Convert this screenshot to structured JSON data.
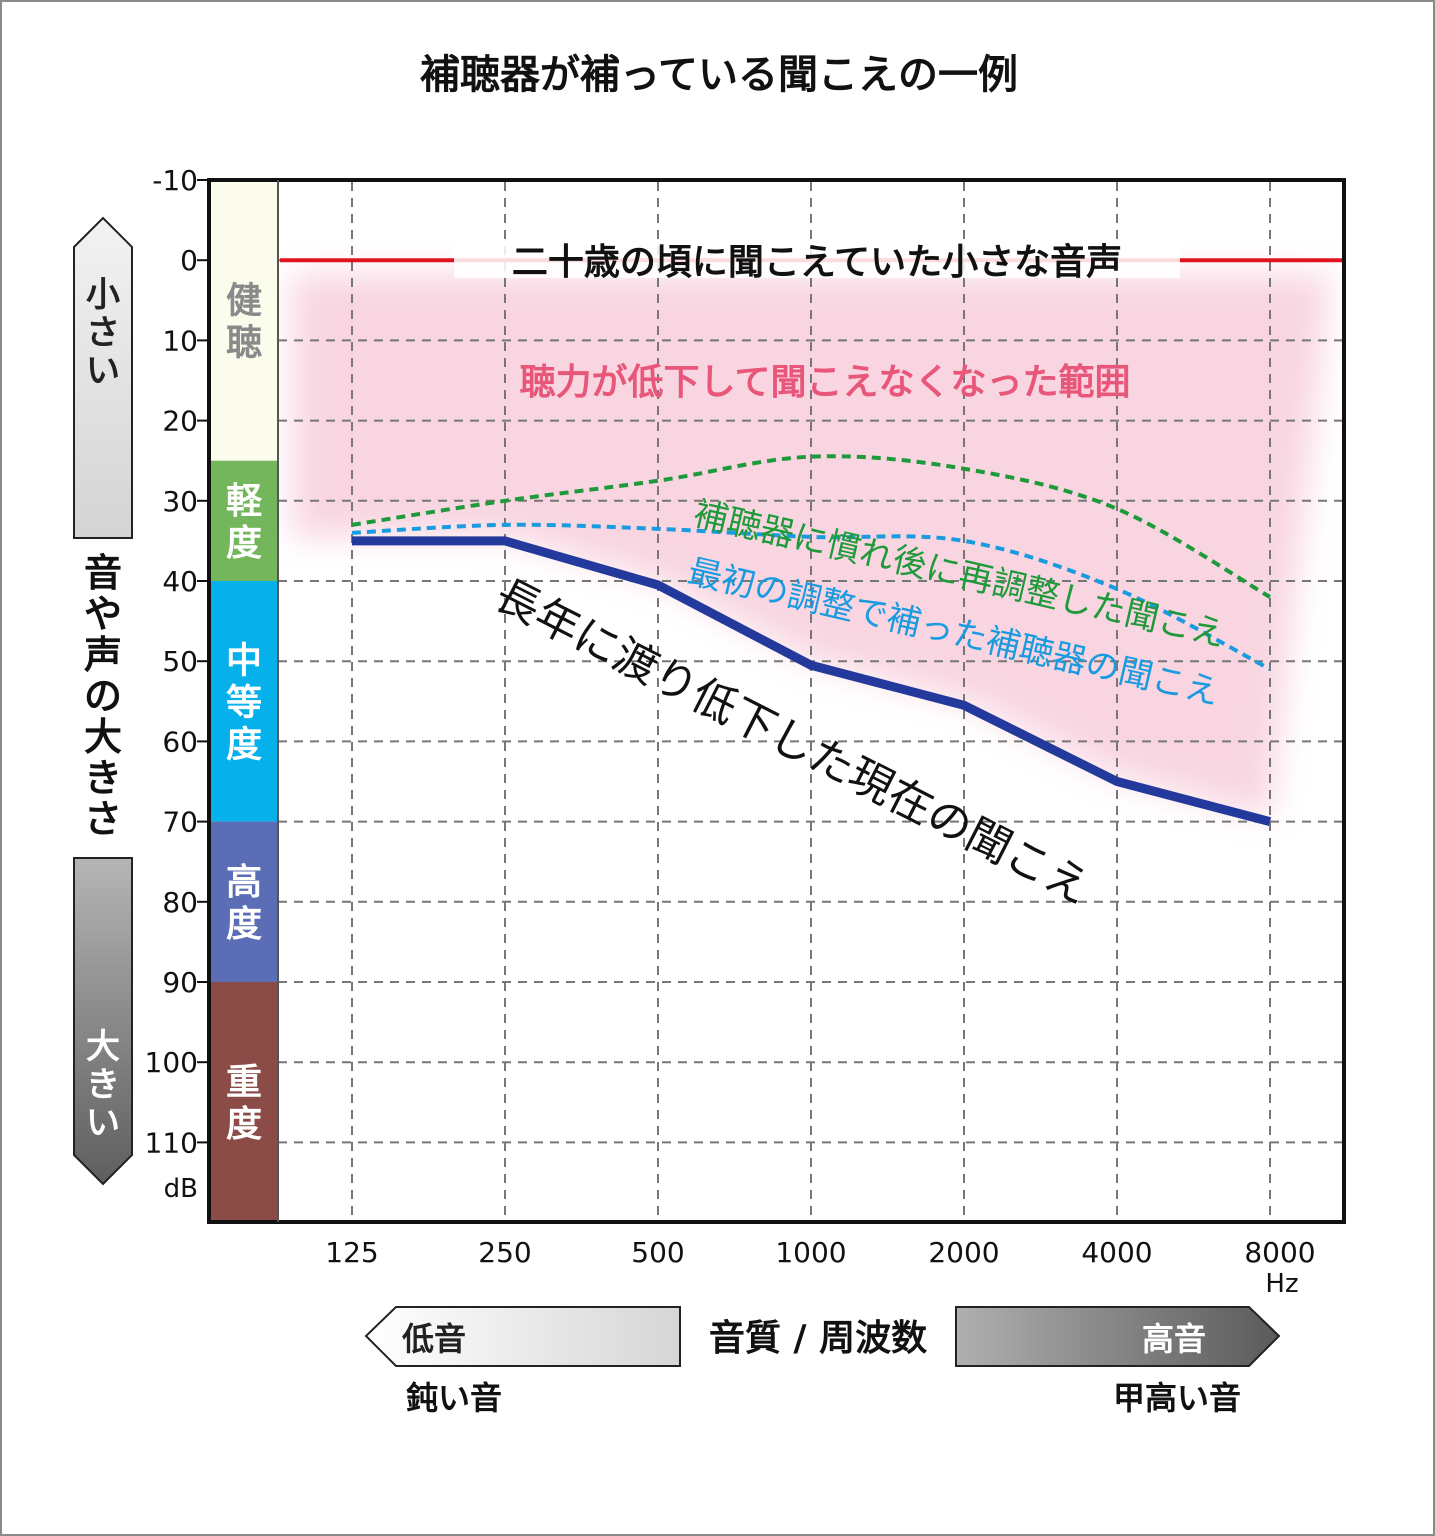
{
  "title": "補聴器が補っている聞こえの一例",
  "y_axis": {
    "label": "音や声の大きさ",
    "top_arrow_label": "小さい",
    "bottom_arrow_label": "大きい",
    "unit": "dB",
    "ticks": [
      "-10",
      "0",
      "10",
      "20",
      "30",
      "40",
      "50",
      "60",
      "70",
      "80",
      "90",
      "100",
      "110"
    ]
  },
  "x_axis": {
    "label": "音質 / 周波数",
    "unit": "Hz",
    "ticks": [
      "125",
      "250",
      "500",
      "1000",
      "2000",
      "4000",
      "8000"
    ],
    "left_arrow_label": "低音",
    "right_arrow_label": "高音",
    "left_caption": "鈍い音",
    "right_caption": "甲高い音"
  },
  "bands": [
    {
      "label": "健聴",
      "from": -10,
      "to": 25,
      "color": "#fbfcec",
      "text_color": "#8a8a8a"
    },
    {
      "label": "軽度",
      "from": 25,
      "to": 40,
      "color": "#74b65b",
      "text_color": "#ffffff"
    },
    {
      "label": "中等度",
      "from": 40,
      "to": 70,
      "color": "#06b0ea",
      "text_color": "#ffffff"
    },
    {
      "label": "高度",
      "from": 70,
      "to": 90,
      "color": "#5a6db5",
      "text_color": "#ffffff"
    },
    {
      "label": "重度",
      "from": 90,
      "to": 120,
      "color": "#8b4c48",
      "text_color": "#ffffff"
    }
  ],
  "annotations": {
    "reference_line": "二十歳の頃に聞こえていた小さな音声",
    "lost_range": "聴力が低下して聞こえなくなった範囲",
    "readjusted": "補聴器に慣れ後に再調整した聞こえ",
    "initial": "最初の調整で補った補聴器の聞こえ",
    "current": "長年に渡り低下した現在の聞こえ"
  },
  "colors": {
    "reference_line": "#e0121e",
    "lost_range": "#e8567a",
    "readjusted": "#1f9a3a",
    "initial": "#1a9be0",
    "current": "#23399b",
    "shade": "#f6c8d8"
  },
  "chart_data": {
    "type": "line",
    "x": [
      "125",
      "250",
      "500",
      "1000",
      "2000",
      "4000",
      "8000"
    ],
    "xlabel": "音質 / 周波数",
    "ylabel": "音や声の大きさ",
    "ylim": [
      -10,
      120
    ],
    "y_inverted": true,
    "x_scale": "log",
    "grid": true,
    "series": [
      {
        "name": "二十歳の頃に聞こえていた小さな音声",
        "style": "solid",
        "values": [
          0,
          0,
          0,
          0,
          0,
          0,
          0
        ]
      },
      {
        "name": "補聴器に慣れ後に再調整した聞こえ",
        "style": "dotted",
        "values": [
          33,
          30,
          27.5,
          24.5,
          26,
          31,
          42
        ]
      },
      {
        "name": "最初の調整で補った補聴器の聞こえ",
        "style": "dotted",
        "values": [
          34,
          33,
          33.5,
          34.5,
          35,
          41,
          51
        ]
      },
      {
        "name": "長年に渡り低下した現在の聞こえ",
        "style": "solid",
        "values": [
          35,
          35,
          40.5,
          50.5,
          55.5,
          65,
          70
        ]
      }
    ]
  }
}
